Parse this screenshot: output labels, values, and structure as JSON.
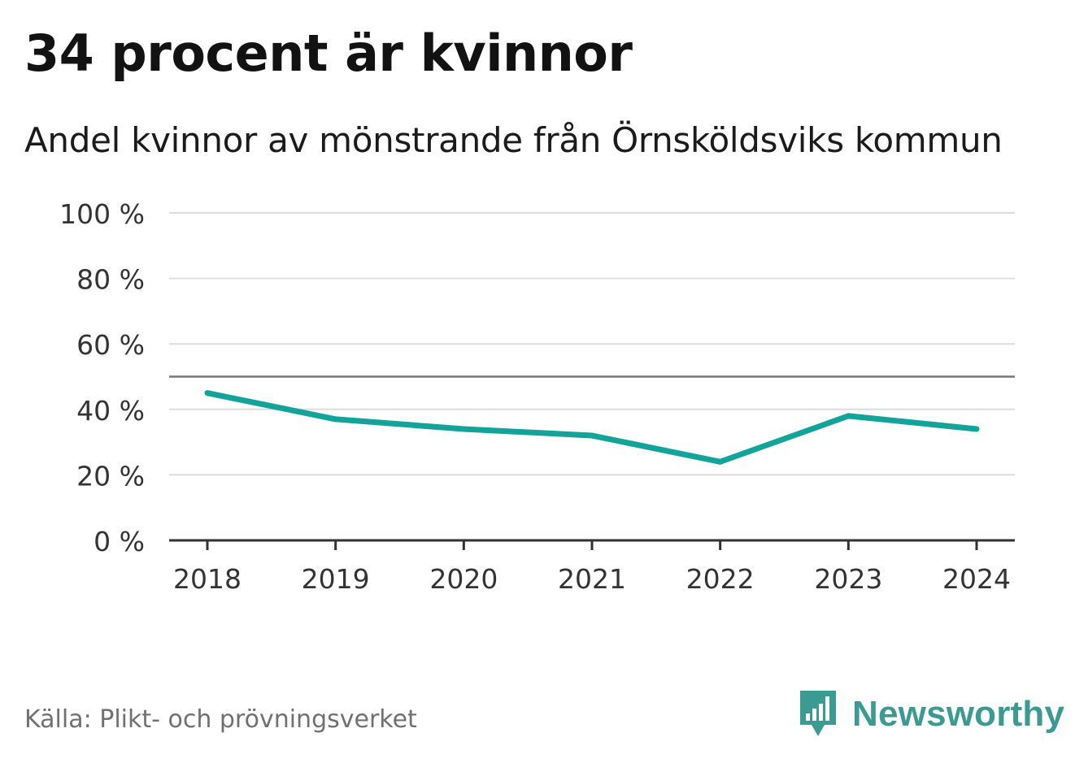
{
  "title": "34 procent är kvinnor",
  "subtitle": "Andel kvinnor av mönstrande från Örnsköldsviks kommun",
  "source": "Källa: Plikt- och prövningsverket",
  "brand": {
    "name": "Newsworthy",
    "logo_icon": "bar-chart-badge-icon",
    "color": "#3b9b93"
  },
  "colors": {
    "line": "#12a39a",
    "grid": "#dddddd",
    "reference_line": "#777777",
    "axis": "#333333",
    "tick_text": "#333333"
  },
  "chart_data": {
    "type": "line",
    "title": "34 procent är kvinnor",
    "subtitle": "Andel kvinnor av mönstrande från Örnsköldsviks kommun",
    "xlabel": "",
    "ylabel": "",
    "categories": [
      "2018",
      "2019",
      "2020",
      "2021",
      "2022",
      "2023",
      "2024"
    ],
    "series": [
      {
        "name": "Andel kvinnor",
        "values": [
          45,
          37,
          34,
          32,
          24,
          38,
          34
        ]
      }
    ],
    "ylim": [
      0,
      100
    ],
    "yticks": [
      0,
      20,
      40,
      60,
      80,
      100
    ],
    "ytick_labels": [
      "0 %",
      "20 %",
      "40 %",
      "60 %",
      "80 %",
      "100 %"
    ],
    "reference_line": 50,
    "grid": true,
    "legend": "none"
  }
}
